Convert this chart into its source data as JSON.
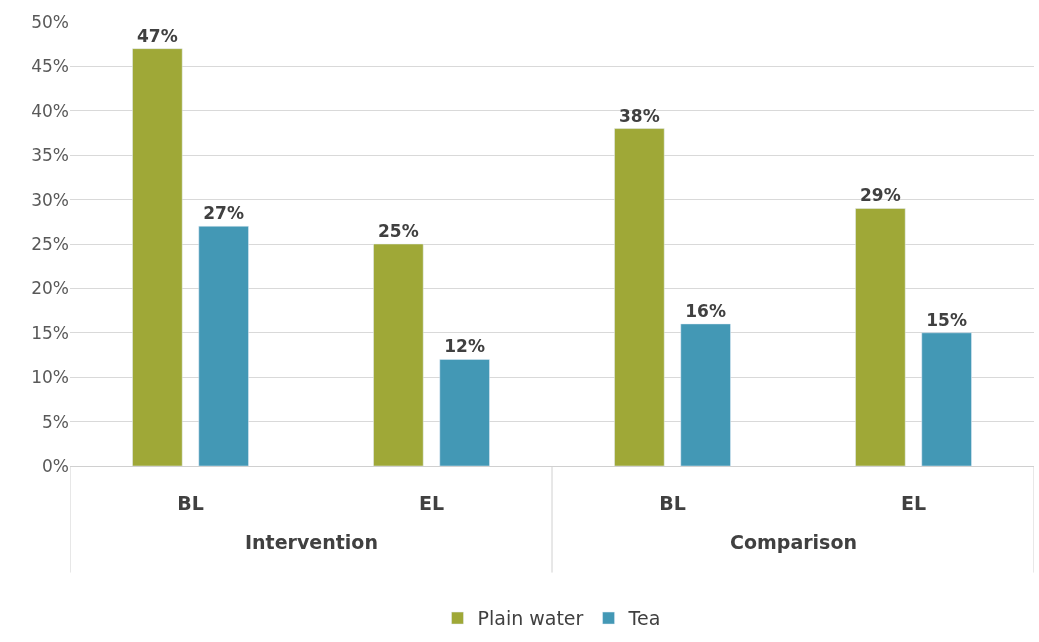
{
  "chart_data": {
    "type": "bar",
    "categories": [
      "BL",
      "EL",
      "BL",
      "EL"
    ],
    "series": [
      {
        "name": "Plain water",
        "color": "#9fa837",
        "values": [
          47,
          25,
          38,
          29
        ],
        "value_labels": [
          "47%",
          "25%",
          "38%",
          "29%"
        ]
      },
      {
        "name": "Tea",
        "color": "#4398b5",
        "values": [
          27,
          12,
          16,
          15
        ],
        "value_labels": [
          "27%",
          "12%",
          "16%",
          "15%"
        ]
      }
    ],
    "annotations": [
      "Intervention",
      "Comparison"
    ],
    "ylim": [
      0,
      50
    ],
    "yticks": [
      {
        "value": 0,
        "label": "0%"
      },
      {
        "value": 5,
        "label": "5%"
      },
      {
        "value": 10,
        "label": "10%"
      },
      {
        "value": 15,
        "label": "15%"
      },
      {
        "value": 20,
        "label": "20%"
      },
      {
        "value": 25,
        "label": "25%"
      },
      {
        "value": 30,
        "label": "30%"
      },
      {
        "value": 35,
        "label": "35%"
      },
      {
        "value": 40,
        "label": "40%"
      },
      {
        "value": 45,
        "label": "45%"
      },
      {
        "value": 50,
        "label": "50%"
      }
    ],
    "grid": "y",
    "legend": "bottom"
  }
}
